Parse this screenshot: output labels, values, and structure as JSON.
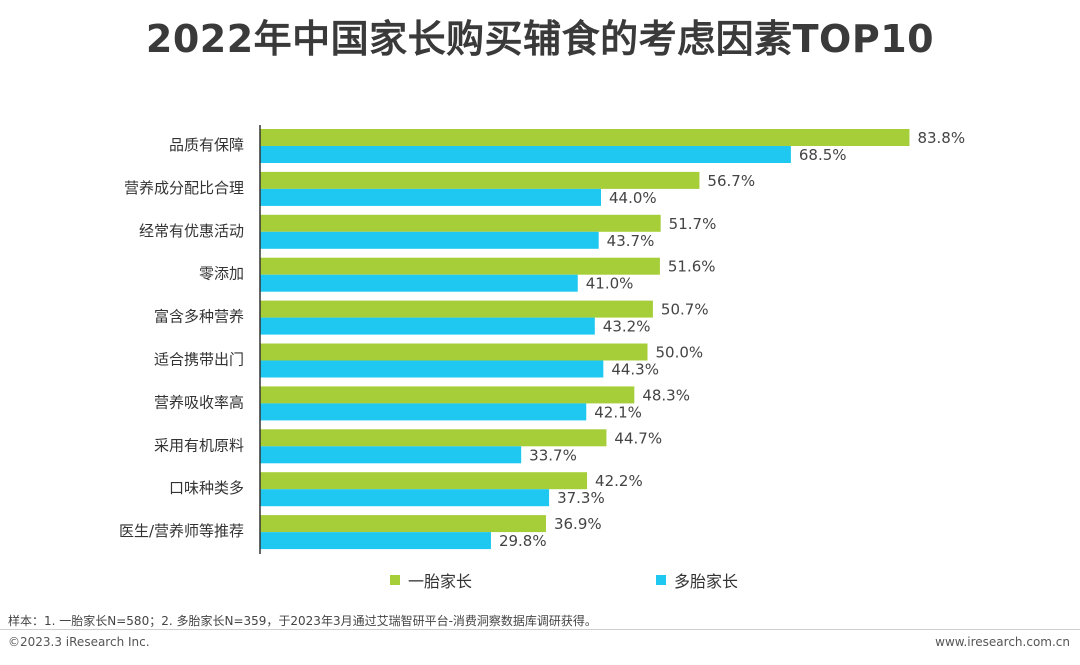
{
  "title": "2022年中国家长购买辅食的考虑因素TOP10",
  "colors": {
    "series1": "#A6CE39",
    "series2": "#1EC8F0",
    "axis": "#333333",
    "label": "#444444"
  },
  "chart_data": {
    "type": "bar",
    "orientation": "horizontal",
    "title": "2022年中国家长购买辅食的考虑因素TOP10",
    "categories": [
      "品质有保障",
      "营养成分配比合理",
      "经常有优惠活动",
      "零添加",
      "富含多种营养",
      "适合携带出门",
      "营养吸收率高",
      "采用有机原料",
      "口味种类多",
      "医生/营养师等推荐"
    ],
    "series": [
      {
        "name": "一胎家长",
        "values": [
          83.8,
          56.7,
          51.7,
          51.6,
          50.7,
          50.0,
          48.3,
          44.7,
          42.2,
          36.9
        ]
      },
      {
        "name": "多胎家长",
        "values": [
          68.5,
          44.0,
          43.7,
          41.0,
          43.2,
          44.3,
          42.1,
          33.7,
          37.3,
          29.8
        ]
      }
    ],
    "value_suffix": "%",
    "xlim": [
      0,
      100
    ],
    "legend": "bottom",
    "grid": false
  },
  "legend": {
    "items": [
      "一胎家长",
      "多胎家长"
    ]
  },
  "footer": {
    "note": "样本：1. 一胎家长N=580；2. 多胎家长N=359，于2023年3月通过艾瑞智研平台-消费洞察数据库调研获得。",
    "copyright": "©2023.3 iResearch Inc.",
    "url": "www.iresearch.com.cn"
  }
}
